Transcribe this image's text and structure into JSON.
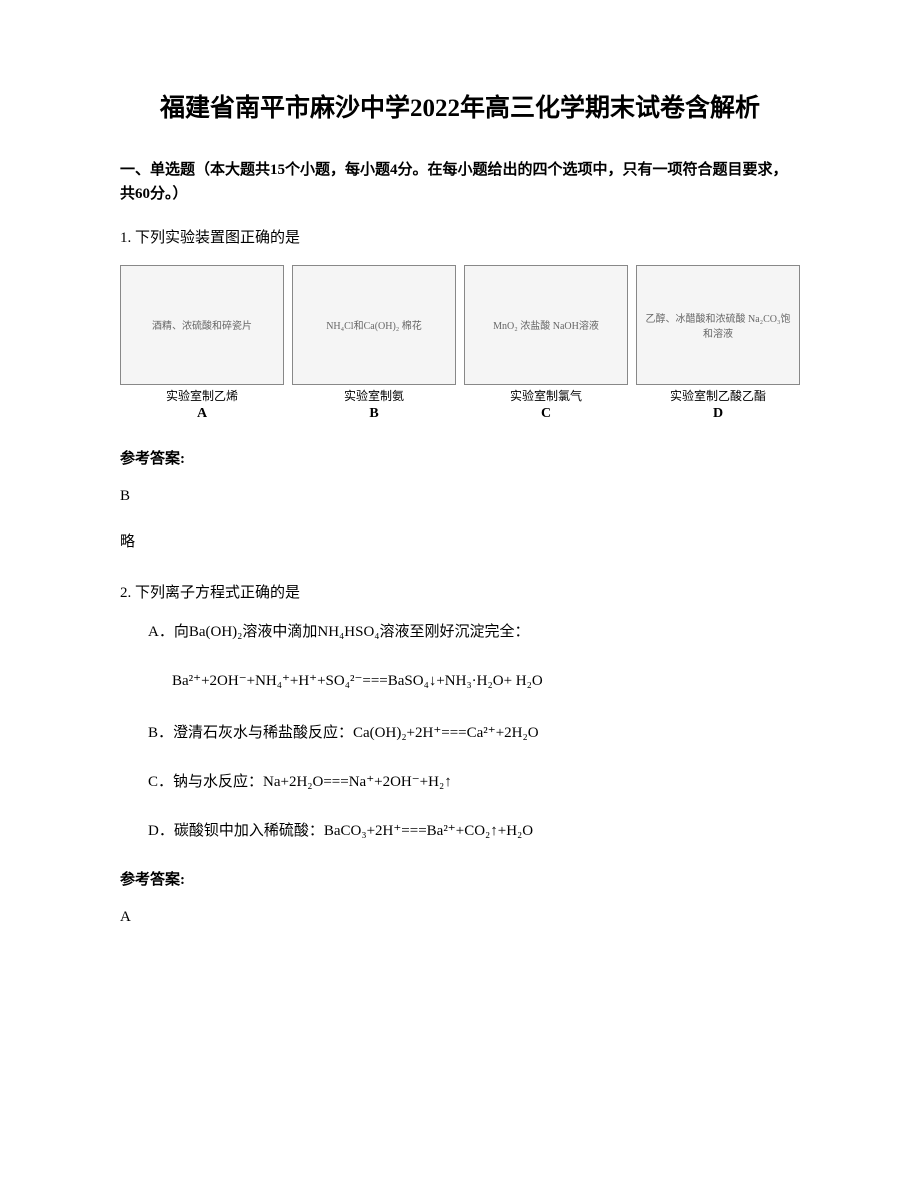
{
  "title": "福建省南平市麻沙中学2022年高三化学期末试卷含解析",
  "section1": {
    "heading": "一、单选题（本大题共15个小题，每小题4分。在每小题给出的四个选项中，只有一项符合题目要求，共60分。）"
  },
  "q1": {
    "text": "1. 下列实验装置图正确的是",
    "diagrams": [
      {
        "desc": "酒精、浓硫酸和碎瓷片",
        "caption": "实验室制乙烯",
        "letter": "A"
      },
      {
        "desc": "NH₄Cl和Ca(OH)₂ 棉花",
        "caption": "实验室制氨",
        "letter": "B"
      },
      {
        "desc": "MnO₂ 浓盐酸 NaOH溶液",
        "caption": "实验室制氯气",
        "letter": "C"
      },
      {
        "desc": "乙醇、冰醋酸和浓硫酸 Na₂CO₃饱和溶液",
        "caption": "实验室制乙酸乙酯",
        "letter": "D"
      }
    ],
    "answer_label": "参考答案:",
    "answer_value": "B",
    "answer_note": "略"
  },
  "q2": {
    "text": "2. 下列离子方程式正确的是",
    "options": {
      "A_text": "A．向Ba(OH)₂溶液中滴加NH₄HSO₄溶液至刚好沉淀完全：",
      "A_eq": "Ba²⁺+2OH⁻+NH₄⁺+H⁺+SO₄²⁻===BaSO₄↓+NH₃·H₂O+ H₂O",
      "B_text": "B．澄清石灰水与稀盐酸反应：Ca(OH)₂+2H⁺===Ca²⁺+2H₂O",
      "C_text": "C．钠与水反应：Na+2H₂O===Na⁺+2OH⁻+H₂↑",
      "D_text": "D．碳酸钡中加入稀硫酸：BaCO₃+2H⁺===Ba²⁺+CO₂↑+H₂O"
    },
    "answer_label": "参考答案:",
    "answer_value": "A"
  },
  "colors": {
    "text": "#000000",
    "background": "#ffffff",
    "diagram_border": "#888888",
    "diagram_bg": "#f5f5f5"
  },
  "typography": {
    "title_fontsize": 25,
    "body_fontsize": 15,
    "caption_fontsize": 12,
    "font_family": "SimSun"
  }
}
